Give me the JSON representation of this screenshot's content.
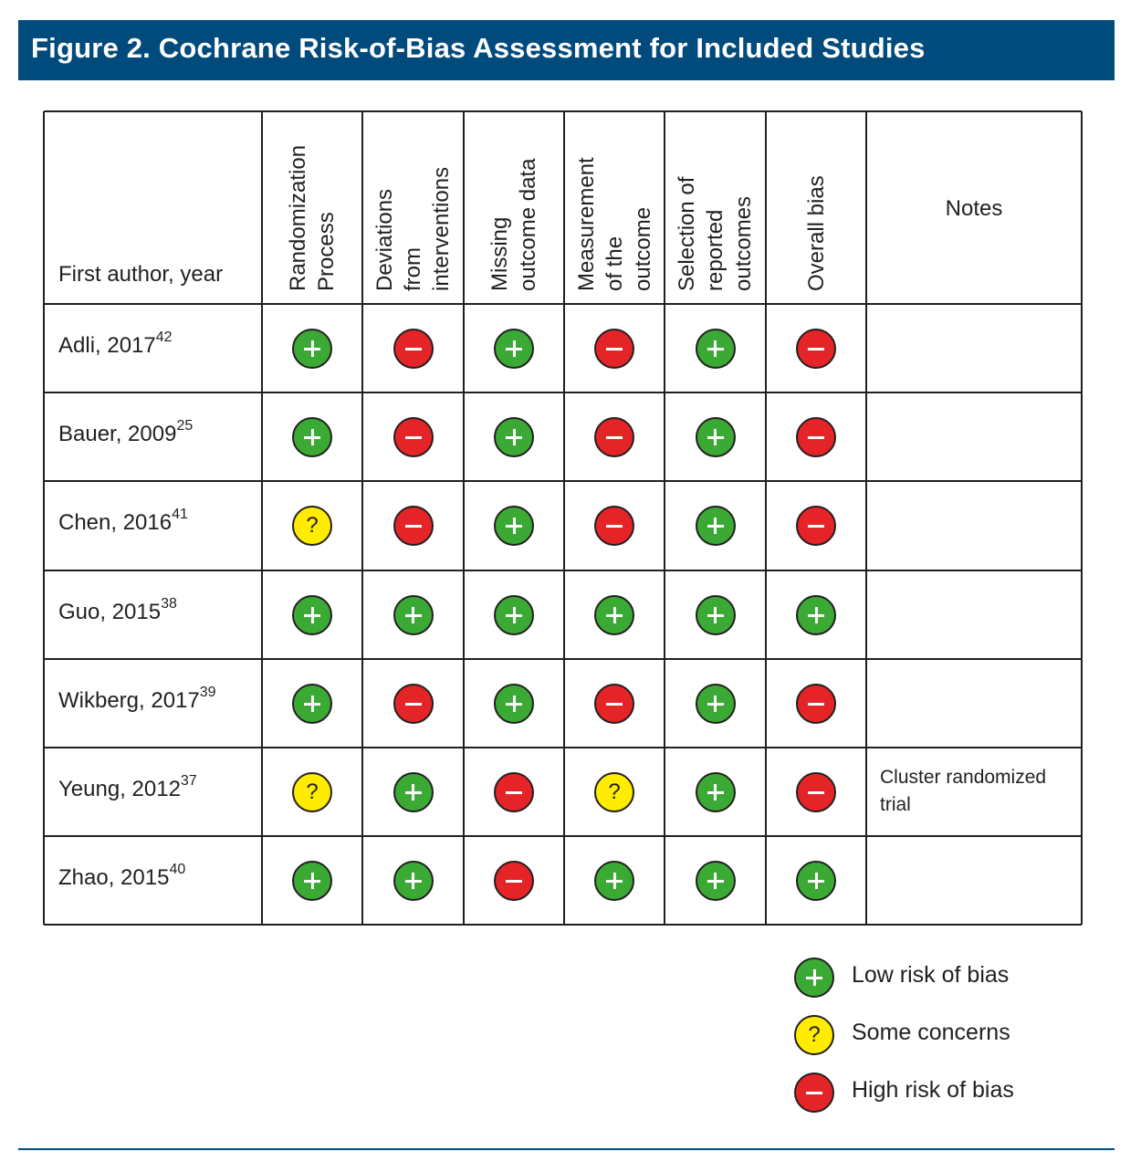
{
  "title": "Figure 2. Cochrane Risk-of-Bias Assessment for Included Studies",
  "columns": {
    "author": "First author, year",
    "domains": [
      [
        "Randomization",
        "Process"
      ],
      [
        "Deviations",
        "from",
        "interventions"
      ],
      [
        "Missing",
        "outcome data"
      ],
      [
        "Measurement",
        "of the",
        "outcome"
      ],
      [
        "Selection of",
        "reported",
        "outcomes"
      ],
      [
        "Overall bias"
      ]
    ],
    "notes": "Notes"
  },
  "rows": [
    {
      "author": "Adli, 2017",
      "ref": "42",
      "ratings": [
        "low",
        "high",
        "low",
        "high",
        "low",
        "high"
      ],
      "note": ""
    },
    {
      "author": "Bauer, 2009",
      "ref": "25",
      "ratings": [
        "low",
        "high",
        "low",
        "high",
        "low",
        "high"
      ],
      "note": ""
    },
    {
      "author": "Chen, 2016",
      "ref": "41",
      "ratings": [
        "some",
        "high",
        "low",
        "high",
        "low",
        "high"
      ],
      "note": ""
    },
    {
      "author": "Guo, 2015",
      "ref": "38",
      "ratings": [
        "low",
        "low",
        "low",
        "low",
        "low",
        "low"
      ],
      "note": ""
    },
    {
      "author": "Wikberg, 2017",
      "ref": "39",
      "ratings": [
        "low",
        "high",
        "low",
        "high",
        "low",
        "high"
      ],
      "note": ""
    },
    {
      "author": "Yeung, 2012",
      "ref": "37",
      "ratings": [
        "some",
        "low",
        "high",
        "some",
        "low",
        "high"
      ],
      "note": "Cluster randomized trial"
    },
    {
      "author": "Zhao, 2015",
      "ref": "40",
      "ratings": [
        "low",
        "low",
        "high",
        "low",
        "low",
        "low"
      ],
      "note": ""
    }
  ],
  "legend": [
    {
      "level": "low",
      "label": "Low risk of bias"
    },
    {
      "level": "some",
      "label": "Some concerns"
    },
    {
      "level": "high",
      "label": "High risk of bias"
    }
  ],
  "colors": {
    "title_bar": "#004a7c",
    "low": "#3aaa35",
    "some": "#ffec00",
    "high": "#e52428"
  },
  "symbols": {
    "low": "plus-icon",
    "some": "question-icon",
    "high": "minus-icon"
  }
}
